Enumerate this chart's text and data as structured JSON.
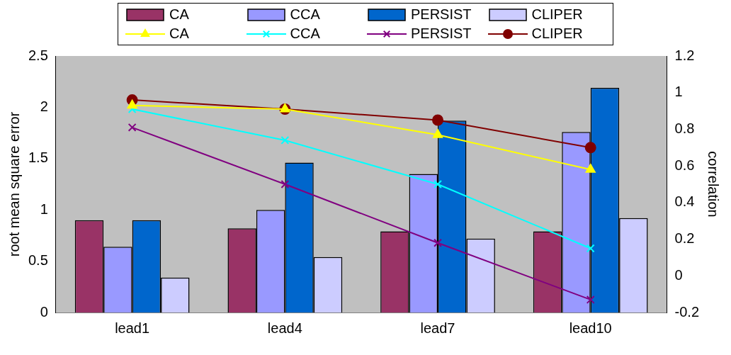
{
  "chart_data": {
    "type": "bar",
    "categories": [
      "lead1",
      "lead4",
      "lead7",
      "lead10"
    ],
    "ylabel": "root mean square error",
    "y2label": "correlation",
    "ylim": [
      0,
      2.5
    ],
    "yticks": [
      0,
      0.5,
      1,
      1.5,
      2,
      2.5
    ],
    "y2lim": [
      -0.2,
      1.2
    ],
    "y2ticks": [
      -0.2,
      0,
      0.2,
      0.4,
      0.6,
      0.8,
      1,
      1.2
    ],
    "grid": false,
    "legend": "top",
    "series": [
      {
        "name": "CA",
        "type": "bar",
        "color": "#993366",
        "values": [
          0.9,
          0.82,
          0.79,
          0.79
        ]
      },
      {
        "name": "CCA",
        "type": "bar",
        "color": "#9999ff",
        "values": [
          0.64,
          1.0,
          1.35,
          1.76
        ]
      },
      {
        "name": "PERSIST",
        "type": "bar",
        "color": "#0066cc",
        "values": [
          0.9,
          1.46,
          1.87,
          2.19
        ]
      },
      {
        "name": "CLIPER",
        "type": "bar",
        "color": "#ccccff",
        "values": [
          0.34,
          0.54,
          0.72,
          0.92
        ]
      },
      {
        "name": "CA",
        "type": "line",
        "axis": "y2",
        "marker": "triangle",
        "color": "#ffff00",
        "values": [
          0.93,
          0.91,
          0.77,
          0.58
        ]
      },
      {
        "name": "CCA",
        "type": "line",
        "axis": "y2",
        "marker": "cross",
        "color": "#00ffff",
        "values": [
          0.91,
          0.74,
          0.5,
          0.15
        ]
      },
      {
        "name": "PERSIST",
        "type": "line",
        "axis": "y2",
        "marker": "cross",
        "color": "#800080",
        "values": [
          0.81,
          0.5,
          0.18,
          -0.13
        ]
      },
      {
        "name": "CLIPER",
        "type": "line",
        "axis": "y2",
        "marker": "circle",
        "color": "#800000",
        "values": [
          0.96,
          0.91,
          0.85,
          0.7
        ]
      }
    ]
  }
}
